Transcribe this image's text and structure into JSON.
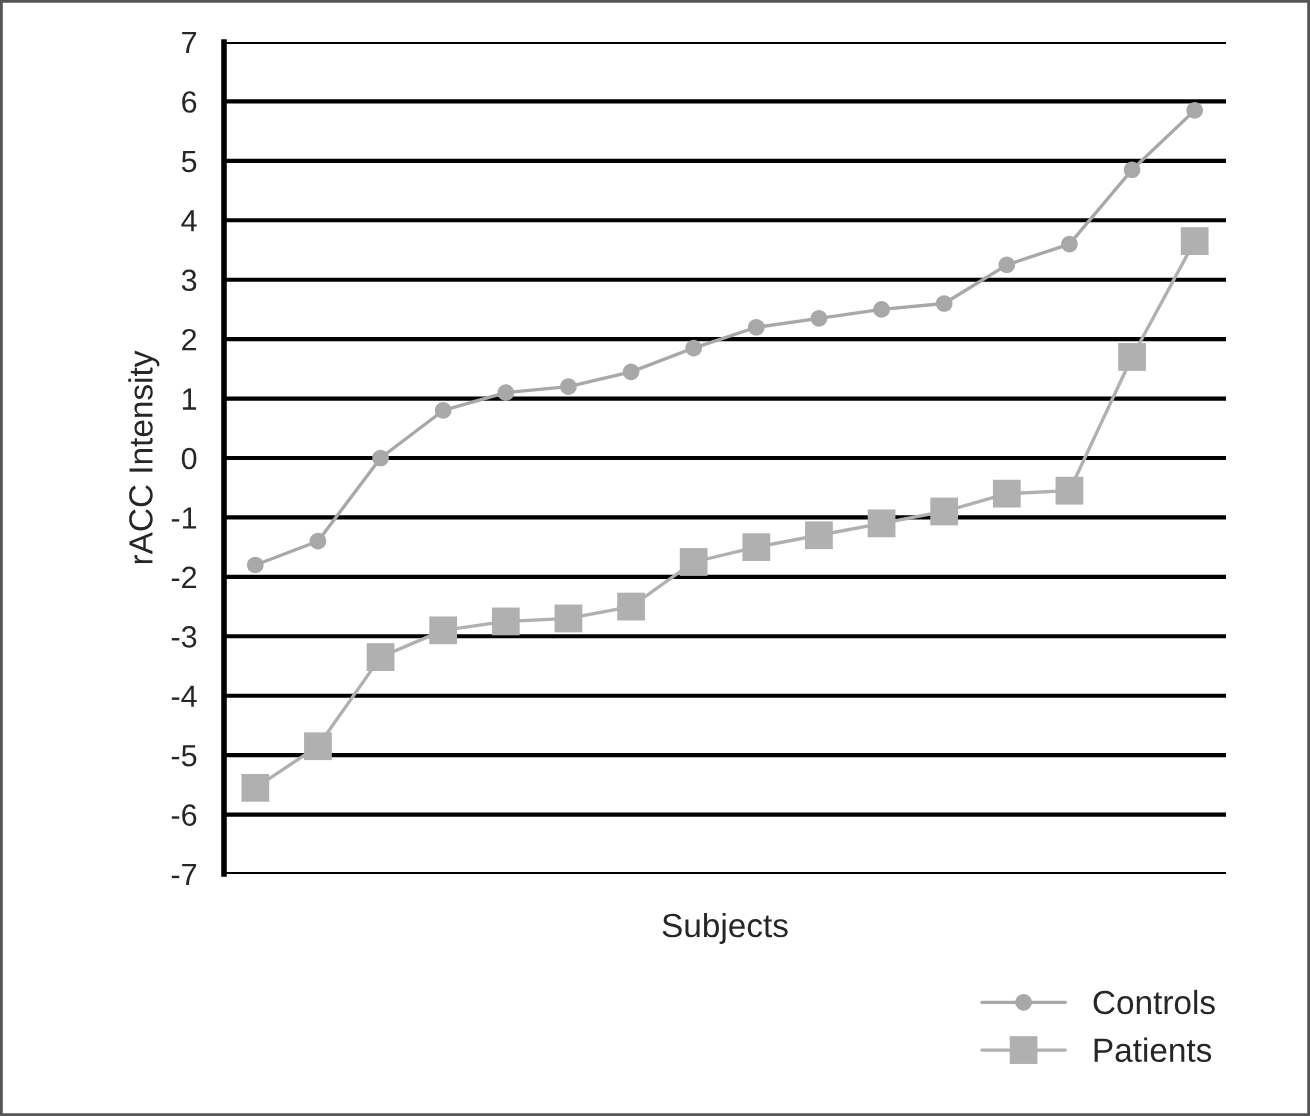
{
  "chart_data": {
    "type": "line",
    "xlabel": "Subjects",
    "ylabel": "rACC Intensity",
    "categories": [
      null,
      null,
      null,
      null,
      null,
      null,
      null,
      null,
      null,
      null,
      null,
      null,
      null,
      null,
      null,
      null
    ],
    "series": [
      {
        "name": "Controls",
        "color": "#a8a8a8",
        "marker": "circle",
        "values": [
          -1.8,
          -1.4,
          0,
          0.8,
          1.1,
          1.2,
          1.45,
          1.85,
          2.2,
          2.35,
          2.5,
          2.6,
          3.25,
          3.6,
          4.85,
          5.85
        ]
      },
      {
        "name": "Patients",
        "color": "#b0b0b0",
        "marker": "square",
        "values": [
          -5.55,
          -4.85,
          -3.35,
          -2.9,
          -2.75,
          -2.7,
          -2.5,
          -1.75,
          -1.5,
          -1.3,
          -1.1,
          -0.9,
          -0.6,
          -0.55,
          1.7,
          3.65
        ]
      }
    ],
    "ylim": [
      -7,
      7
    ],
    "yticks": [
      -7,
      -6,
      -5,
      -4,
      -3,
      -2,
      -1,
      0,
      1,
      2,
      3,
      4,
      5,
      6,
      7
    ],
    "grid": "y",
    "legend": "bottom right",
    "tick_labels": "y",
    "line_style": "solid"
  }
}
